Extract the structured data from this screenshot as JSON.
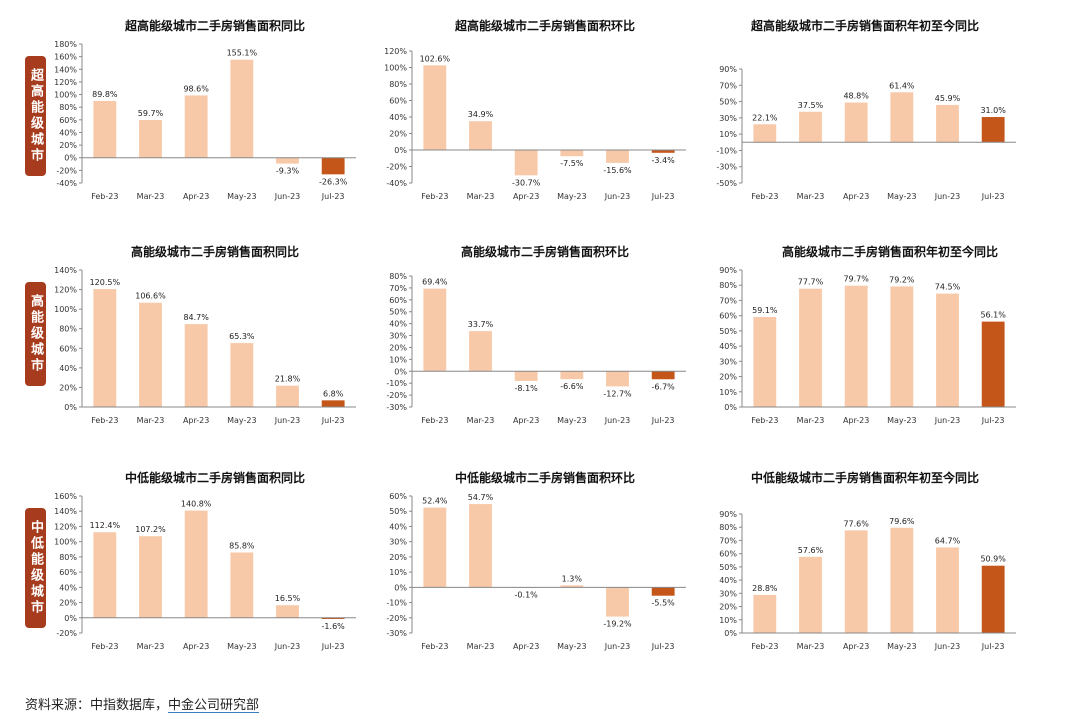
{
  "row_labels": [
    "超高能级城市",
    "高能级城市",
    "中低能级城市"
  ],
  "source_prefix": "资料来源：中指数据库，",
  "source_link": "中金公司研究部",
  "colors": {
    "bar": "#f7c9a8",
    "highlight": "#c5561a",
    "axis": "#888888",
    "row_label_bg": "#a63b1d"
  },
  "chart_data": [
    {
      "type": "bar",
      "title": "超高能级城市二手房销售面积同比",
      "categories": [
        "Feb-23",
        "Mar-23",
        "Apr-23",
        "May-23",
        "Jun-23",
        "Jul-23"
      ],
      "values": [
        89.8,
        59.7,
        98.6,
        155.1,
        -9.3,
        -26.3
      ],
      "value_labels": [
        "89.8%",
        "59.7%",
        "98.6%",
        "155.1%",
        "-9.3%",
        "-26.3%"
      ],
      "ylim": [
        -40,
        180
      ],
      "yticks": [
        -40,
        -20,
        0,
        20,
        40,
        60,
        80,
        100,
        120,
        140,
        160,
        180
      ],
      "highlight_index": 5
    },
    {
      "type": "bar",
      "title": "超高能级城市二手房销售面积环比",
      "categories": [
        "Feb-23",
        "Mar-23",
        "Apr-23",
        "May-23",
        "Jun-23",
        "Jul-23"
      ],
      "values": [
        102.6,
        34.9,
        -30.7,
        -7.5,
        -15.6,
        -3.4
      ],
      "value_labels": [
        "102.6%",
        "34.9%",
        "-30.7%",
        "-7.5%",
        "-15.6%",
        "-3.4%"
      ],
      "ylim": [
        -40,
        120
      ],
      "yticks": [
        -40,
        -20,
        0,
        20,
        40,
        60,
        80,
        100,
        120
      ],
      "highlight_index": 5
    },
    {
      "type": "bar",
      "title": "超高能级城市二手房销售面积年初至今同比",
      "categories": [
        "Feb-23",
        "Mar-23",
        "Apr-23",
        "May-23",
        "Jun-23",
        "Jul-23"
      ],
      "values": [
        22.1,
        37.5,
        48.8,
        61.4,
        45.9,
        31.0
      ],
      "value_labels": [
        "22.1%",
        "37.5%",
        "48.8%",
        "61.4%",
        "45.9%",
        "31.0%"
      ],
      "ylim": [
        -50,
        90
      ],
      "yticks": [
        -50,
        -30,
        -10,
        10,
        30,
        50,
        70,
        90
      ],
      "highlight_index": 5
    },
    {
      "type": "bar",
      "title": "高能级城市二手房销售面积同比",
      "categories": [
        "Feb-23",
        "Mar-23",
        "Apr-23",
        "May-23",
        "Jun-23",
        "Jul-23"
      ],
      "values": [
        120.5,
        106.6,
        84.7,
        65.3,
        21.8,
        6.8
      ],
      "value_labels": [
        "120.5%",
        "106.6%",
        "84.7%",
        "65.3%",
        "21.8%",
        "6.8%"
      ],
      "ylim": [
        0,
        140
      ],
      "yticks": [
        0,
        20,
        40,
        60,
        80,
        100,
        120,
        140
      ],
      "highlight_index": 5
    },
    {
      "type": "bar",
      "title": "高能级城市二手房销售面积环比",
      "categories": [
        "Feb-23",
        "Mar-23",
        "Apr-23",
        "May-23",
        "Jun-23",
        "Jul-23"
      ],
      "values": [
        69.4,
        33.7,
        -8.1,
        -6.6,
        -12.7,
        -6.7
      ],
      "value_labels": [
        "69.4%",
        "33.7%",
        "-8.1%",
        "-6.6%",
        "-12.7%",
        "-6.7%"
      ],
      "ylim": [
        -30,
        80
      ],
      "yticks": [
        -30,
        -20,
        -10,
        0,
        10,
        20,
        30,
        40,
        50,
        60,
        70,
        80
      ],
      "highlight_index": 5
    },
    {
      "type": "bar",
      "title": "高能级城市二手房销售面积年初至今同比",
      "categories": [
        "Feb-23",
        "Mar-23",
        "Apr-23",
        "May-23",
        "Jun-23",
        "Jul-23"
      ],
      "values": [
        59.1,
        77.7,
        79.7,
        79.2,
        74.5,
        56.1
      ],
      "value_labels": [
        "59.1%",
        "77.7%",
        "79.7%",
        "79.2%",
        "74.5%",
        "56.1%"
      ],
      "ylim": [
        0,
        90
      ],
      "yticks": [
        0,
        10,
        20,
        30,
        40,
        50,
        60,
        70,
        80,
        90
      ],
      "highlight_index": 5
    },
    {
      "type": "bar",
      "title": "中低能级城市二手房销售面积同比",
      "categories": [
        "Feb-23",
        "Mar-23",
        "Apr-23",
        "May-23",
        "Jun-23",
        "Jul-23"
      ],
      "values": [
        112.4,
        107.2,
        140.8,
        85.8,
        16.5,
        -1.6
      ],
      "value_labels": [
        "112.4%",
        "107.2%",
        "140.8%",
        "85.8%",
        "16.5%",
        "-1.6%"
      ],
      "ylim": [
        -20,
        160
      ],
      "yticks": [
        -20,
        0,
        20,
        40,
        60,
        80,
        100,
        120,
        140,
        160
      ],
      "highlight_index": 5
    },
    {
      "type": "bar",
      "title": "中低能级城市二手房销售面积环比",
      "categories": [
        "Feb-23",
        "Mar-23",
        "Apr-23",
        "May-23",
        "Jun-23",
        "Jul-23"
      ],
      "values": [
        52.4,
        54.7,
        -0.1,
        1.3,
        -19.2,
        -5.5
      ],
      "value_labels": [
        "52.4%",
        "54.7%",
        "-0.1%",
        "1.3%",
        "-19.2%",
        "-5.5%"
      ],
      "ylim": [
        -30,
        60
      ],
      "yticks": [
        -30,
        -20,
        -10,
        0,
        10,
        20,
        30,
        40,
        50,
        60
      ],
      "highlight_index": 5
    },
    {
      "type": "bar",
      "title": "中低能级城市二手房销售面积年初至今同比",
      "categories": [
        "Feb-23",
        "Mar-23",
        "Apr-23",
        "May-23",
        "Jun-23",
        "Jul-23"
      ],
      "values": [
        28.8,
        57.6,
        77.6,
        79.6,
        64.7,
        50.9
      ],
      "value_labels": [
        "28.8%",
        "57.6%",
        "77.6%",
        "79.6%",
        "64.7%",
        "50.9%"
      ],
      "ylim": [
        0,
        90
      ],
      "yticks": [
        0,
        10,
        20,
        30,
        40,
        50,
        60,
        70,
        80,
        90
      ],
      "highlight_index": 5
    }
  ]
}
